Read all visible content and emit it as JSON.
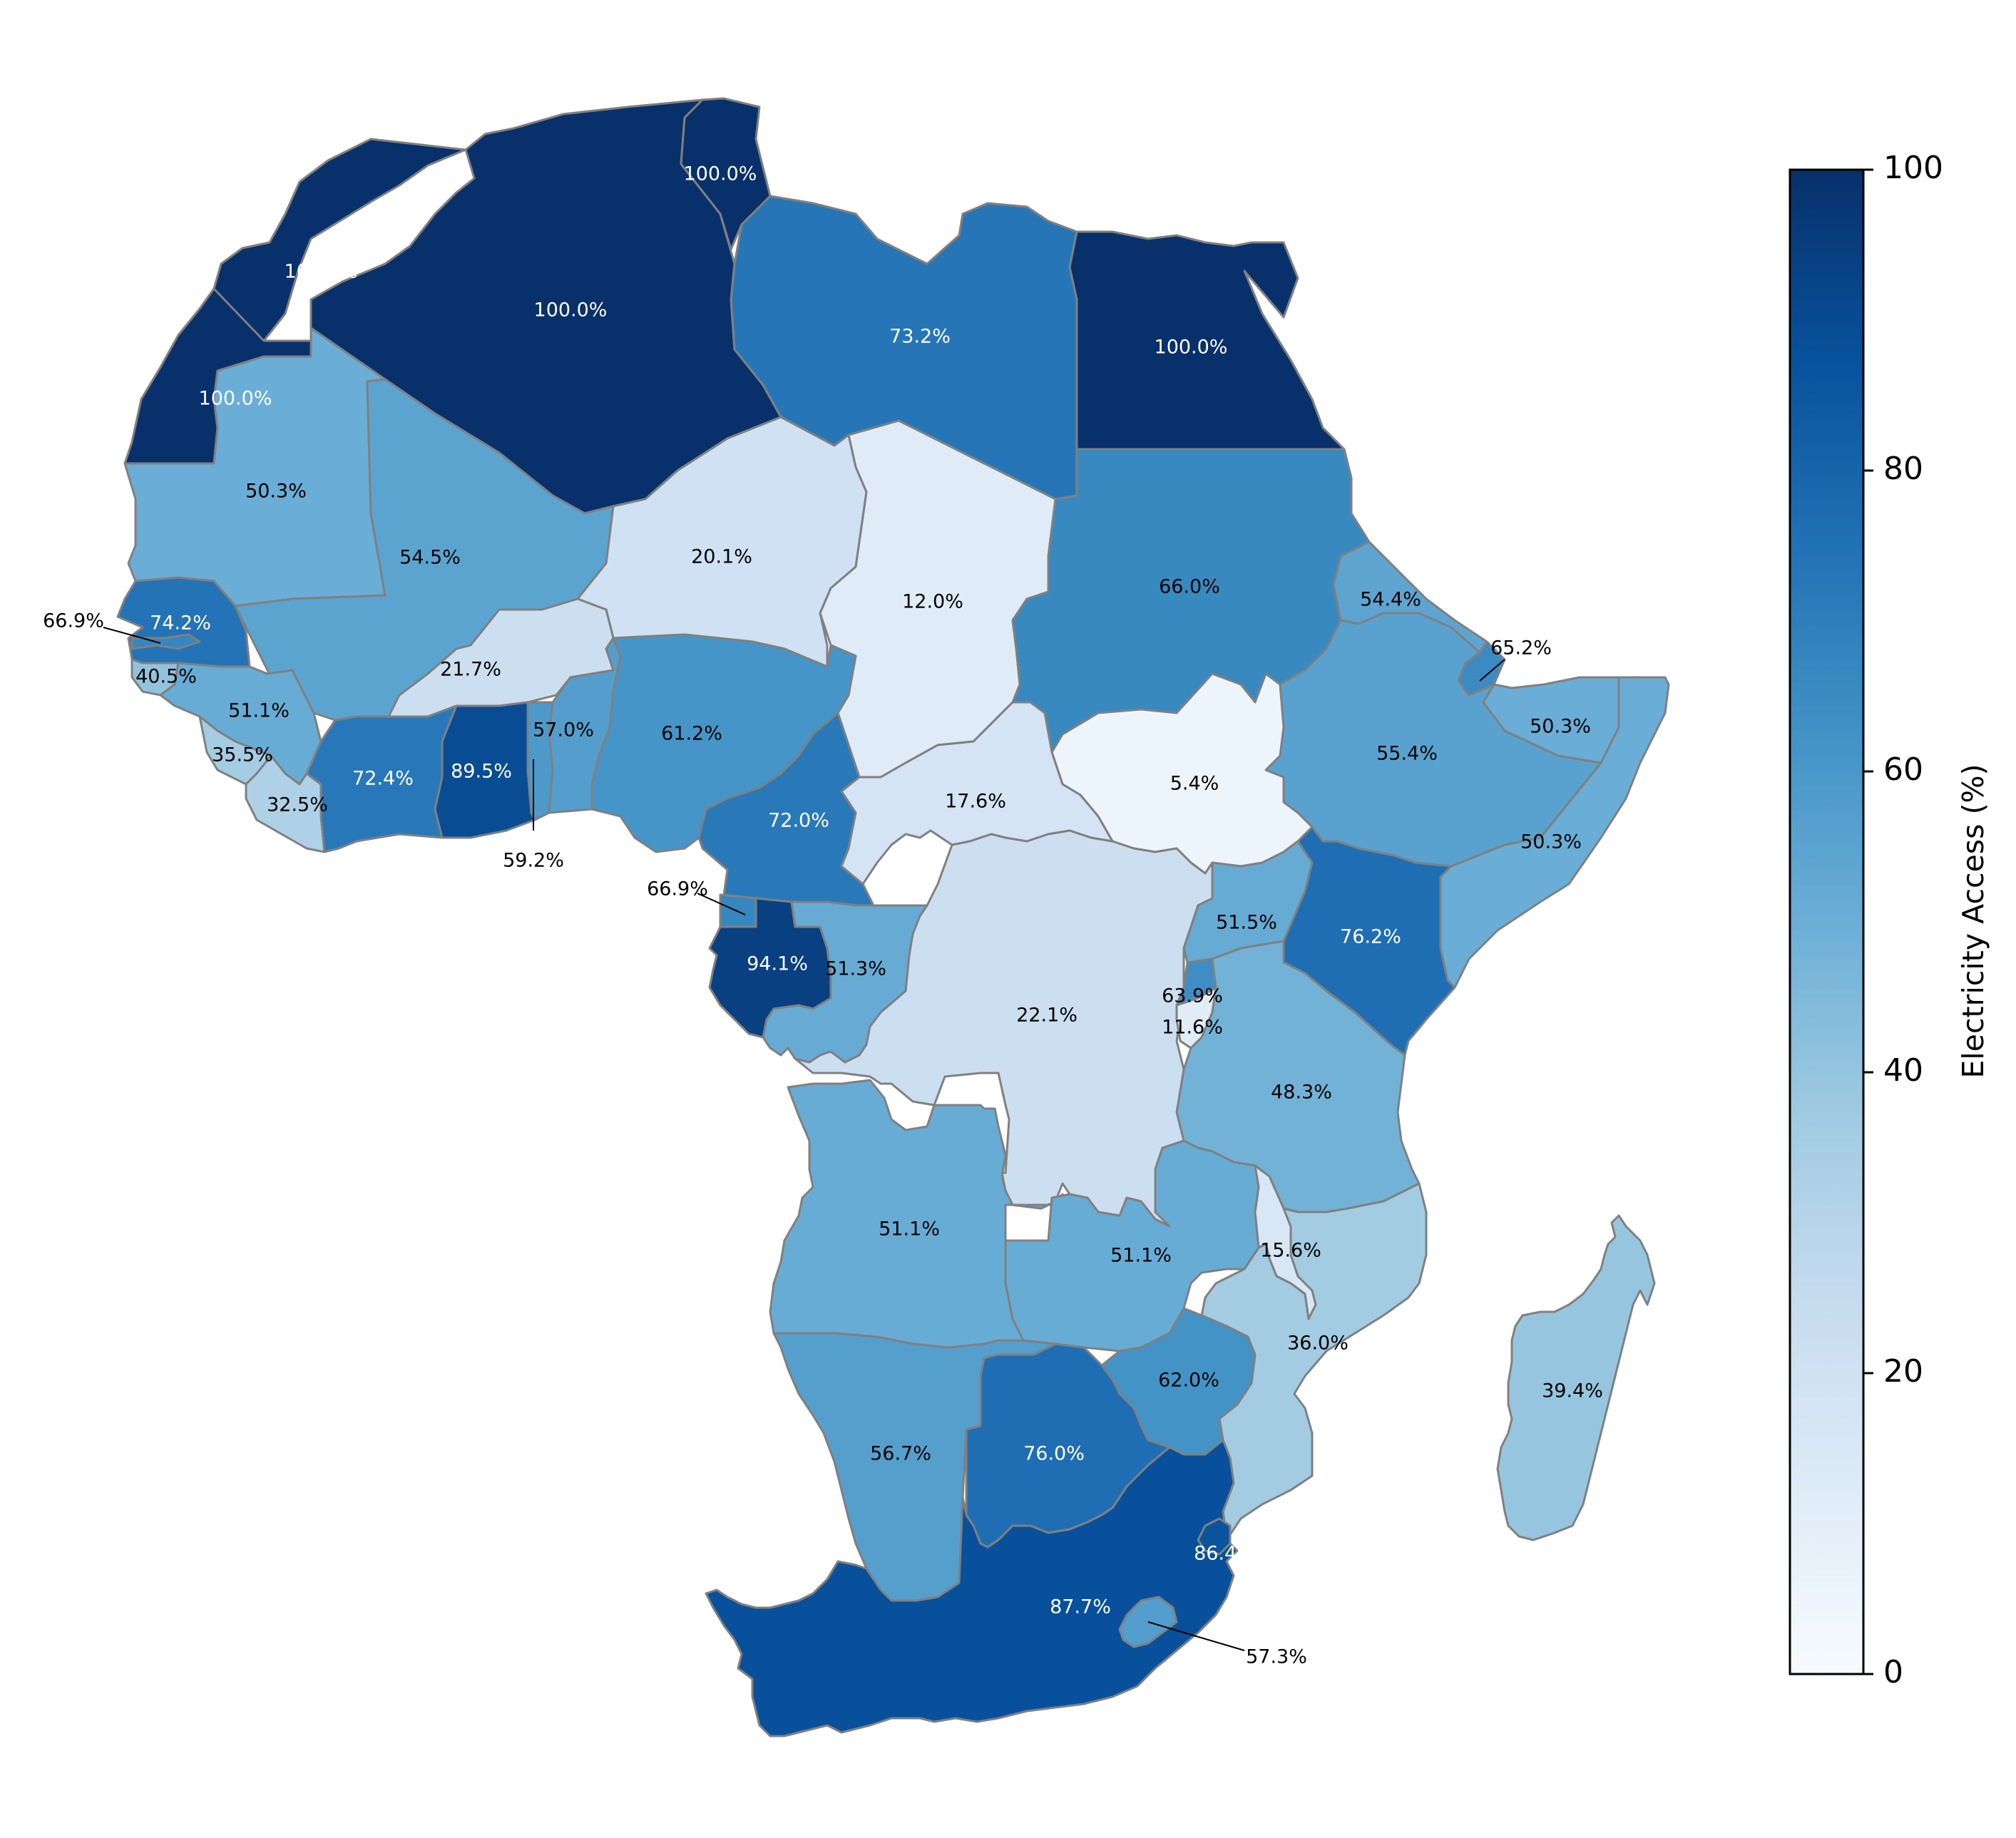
{
  "colorbar": {
    "label": "Electricity Access (%)",
    "min": 0,
    "max": 100,
    "ticks": [
      "0",
      "20",
      "40",
      "60",
      "80",
      "100"
    ],
    "colormap": "Blues"
  },
  "colors": {
    "border": "#808080",
    "ramp": [
      "#f7fbff",
      "#deebf7",
      "#c6dbef",
      "#9ecae1",
      "#6baed6",
      "#4292c6",
      "#2171b5",
      "#08519c",
      "#08306b"
    ]
  },
  "regions": [
    {
      "name": "morocco",
      "value": 100.0,
      "label": "100.0%"
    },
    {
      "name": "western-sahara",
      "value": 100.0,
      "label": "100.0%"
    },
    {
      "name": "algeria",
      "value": 100.0,
      "label": "100.0%"
    },
    {
      "name": "tunisia",
      "value": 100.0,
      "label": "100.0%"
    },
    {
      "name": "libya",
      "value": 73.2,
      "label": "73.2%"
    },
    {
      "name": "egypt",
      "value": 100.0,
      "label": "100.0%"
    },
    {
      "name": "mauritania",
      "value": 50.3,
      "label": "50.3%"
    },
    {
      "name": "mali",
      "value": 54.5,
      "label": "54.5%"
    },
    {
      "name": "niger",
      "value": 20.1,
      "label": "20.1%"
    },
    {
      "name": "chad",
      "value": 12.0,
      "label": "12.0%"
    },
    {
      "name": "sudan",
      "value": 66.0,
      "label": "66.0%"
    },
    {
      "name": "eritrea",
      "value": 54.4,
      "label": "54.4%"
    },
    {
      "name": "djibouti",
      "value": 65.2,
      "label": "65.2%"
    },
    {
      "name": "ethiopia",
      "value": 55.4,
      "label": "55.4%"
    },
    {
      "name": "somaliland",
      "value": 50.3,
      "label": "50.3%"
    },
    {
      "name": "somalia",
      "value": 50.3,
      "label": "50.3%"
    },
    {
      "name": "south-sudan",
      "value": 5.4,
      "label": "5.4%"
    },
    {
      "name": "senegal",
      "value": 74.2,
      "label": "74.2%"
    },
    {
      "name": "gambia",
      "value": 66.9,
      "label": "66.9%"
    },
    {
      "name": "guinea-bissau",
      "value": 40.5,
      "label": "40.5%"
    },
    {
      "name": "guinea",
      "value": 51.1,
      "label": "51.1%"
    },
    {
      "name": "sierra-leone",
      "value": 35.5,
      "label": "35.5%"
    },
    {
      "name": "liberia",
      "value": 32.5,
      "label": "32.5%"
    },
    {
      "name": "burkina-faso",
      "value": 21.7,
      "label": "21.7%"
    },
    {
      "name": "ivory-coast",
      "value": 72.4,
      "label": "72.4%"
    },
    {
      "name": "ghana",
      "value": 89.5,
      "label": "89.5%"
    },
    {
      "name": "togo",
      "value": 59.2,
      "label": "59.2%"
    },
    {
      "name": "benin",
      "value": 57.0,
      "label": "57.0%"
    },
    {
      "name": "nigeria",
      "value": 61.2,
      "label": "61.2%"
    },
    {
      "name": "cameroon",
      "value": 72.0,
      "label": "72.0%"
    },
    {
      "name": "central-african-republic",
      "value": 17.6,
      "label": "17.6%"
    },
    {
      "name": "equatorial-guinea",
      "value": 66.9,
      "label": "66.9%"
    },
    {
      "name": "gabon",
      "value": 94.1,
      "label": "94.1%"
    },
    {
      "name": "congo",
      "value": 51.3,
      "label": "51.3%"
    },
    {
      "name": "dr-congo",
      "value": 22.1,
      "label": "22.1%"
    },
    {
      "name": "uganda",
      "value": 51.5,
      "label": "51.5%"
    },
    {
      "name": "kenya",
      "value": 76.2,
      "label": "76.2%"
    },
    {
      "name": "rwanda",
      "value": 63.9,
      "label": "63.9%"
    },
    {
      "name": "burundi",
      "value": 11.6,
      "label": "11.6%"
    },
    {
      "name": "tanzania",
      "value": 48.3,
      "label": "48.3%"
    },
    {
      "name": "angola",
      "value": 51.1,
      "label": "51.1%"
    },
    {
      "name": "zambia",
      "value": 51.1,
      "label": "51.1%"
    },
    {
      "name": "malawi",
      "value": 15.6,
      "label": "15.6%"
    },
    {
      "name": "mozambique",
      "value": 36.0,
      "label": "36.0%"
    },
    {
      "name": "zimbabwe",
      "value": 62.0,
      "label": "62.0%"
    },
    {
      "name": "namibia",
      "value": 56.7,
      "label": "56.7%"
    },
    {
      "name": "botswana",
      "value": 76.0,
      "label": "76.0%"
    },
    {
      "name": "south-africa",
      "value": 87.7,
      "label": "87.7%"
    },
    {
      "name": "eswatini",
      "value": 86.4,
      "label": "86.4%"
    },
    {
      "name": "lesotho",
      "value": 57.3,
      "label": "57.3%"
    },
    {
      "name": "madagascar",
      "value": 39.4,
      "label": "39.4%"
    }
  ]
}
